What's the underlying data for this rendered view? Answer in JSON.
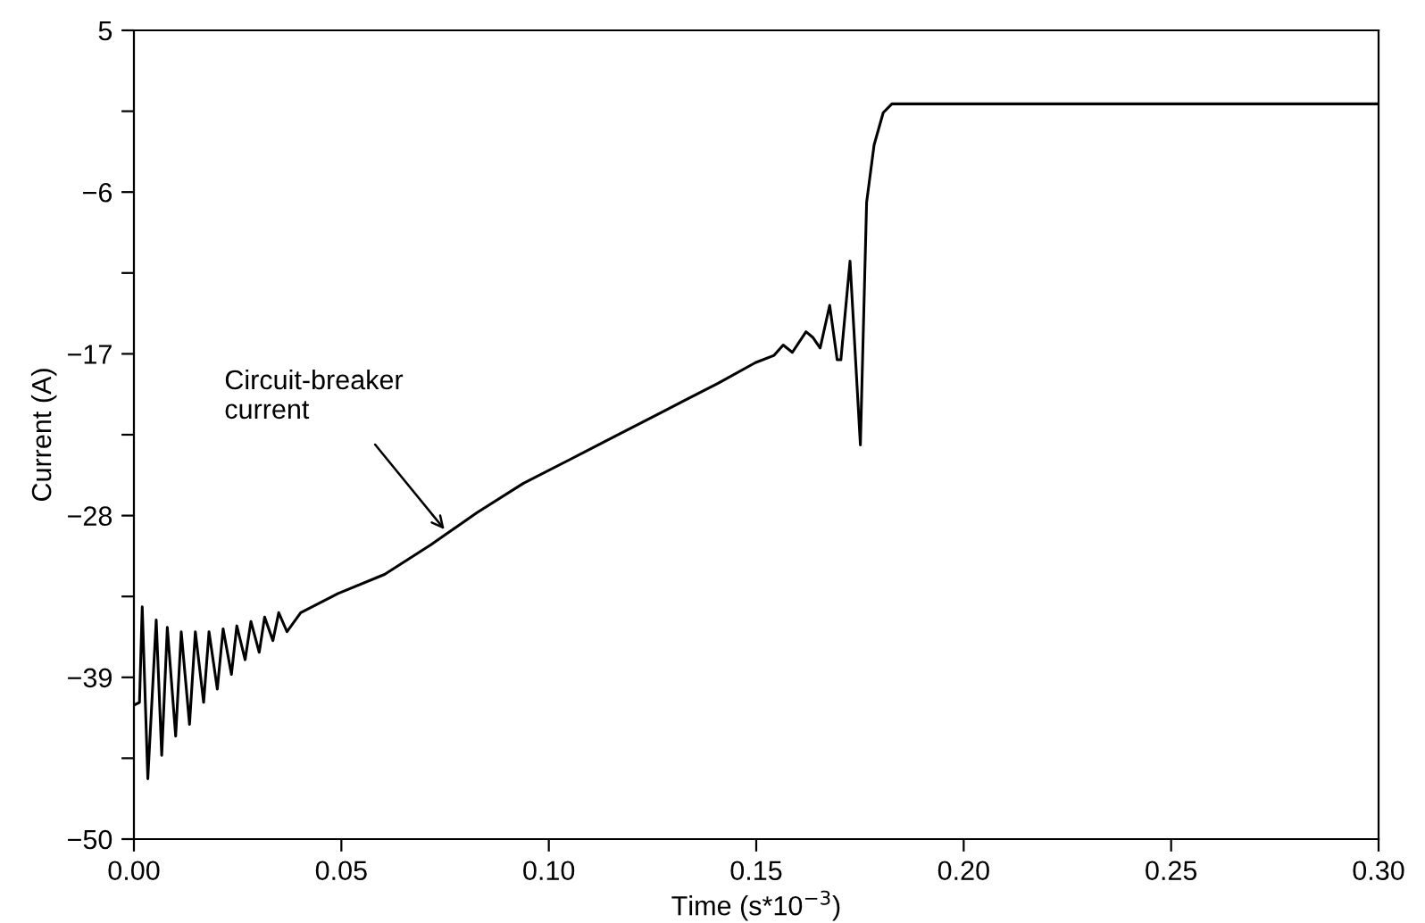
{
  "chart_data": {
    "type": "line",
    "xlabel": "Time (s*10$^{−3}$)",
    "ylabel": "Current (A)",
    "x": [
      0,
      0.00134,
      0.002,
      0.00335,
      0.00537,
      0.0067,
      0.00805,
      0.01006,
      0.0114,
      0.0134,
      0.0148,
      0.0168,
      0.0181,
      0.0201,
      0.0215,
      0.0235,
      0.0248,
      0.0268,
      0.0282,
      0.0302,
      0.0315,
      0.0335,
      0.0349,
      0.0369,
      0.0402,
      0.0492,
      0.0604,
      0.0715,
      0.0827,
      0.0939,
      0.105,
      0.116,
      0.127,
      0.1408,
      0.1498,
      0.1543,
      0.1565,
      0.1587,
      0.162,
      0.1637,
      0.1654,
      0.1677,
      0.1695,
      0.1704,
      0.1726,
      0.1751,
      0.1766,
      0.1784,
      0.1806,
      0.1827,
      0.2996
    ],
    "series": [
      {
        "color": "#000000",
        "values": [
          -40.9,
          -40.7,
          -34.2,
          -45.9,
          -35.1,
          -44.3,
          -35.6,
          -43.0,
          -35.9,
          -42.2,
          -35.9,
          -40.7,
          -35.9,
          -39.8,
          -35.7,
          -38.8,
          -35.5,
          -37.8,
          -35.2,
          -37.3,
          -34.9,
          -36.5,
          -34.6,
          -35.9,
          -34.6,
          -33.3,
          -32.0,
          -30.0,
          -27.8,
          -25.8,
          -24.2,
          -22.6,
          -21.0,
          -19.0,
          -17.6,
          -17.1,
          -16.4,
          -16.9,
          -15.5,
          -15.9,
          -16.6,
          -13.7,
          -17.4,
          -17.4,
          -10.7,
          -23.2,
          -6.7,
          -2.8,
          -0.6,
          0.0,
          0.0
        ]
      }
    ],
    "xlim": [
      0,
      0.3
    ],
    "xticks": [
      {
        "value": 0,
        "label": "0.00"
      },
      0.05,
      {
        "value": 0.1,
        "label": "0.10"
      },
      0.15,
      {
        "value": 0.2,
        "label": "0.20"
      },
      0.25,
      {
        "value": 0.3,
        "label": "0.30"
      }
    ],
    "ylim": [
      -50,
      5
    ],
    "yticks": [
      {
        "value": -50,
        "label": "−50"
      },
      {
        "value": -44.5,
        "label": null
      },
      {
        "value": -39,
        "label": "−39"
      },
      {
        "value": -33.5,
        "label": null
      },
      {
        "value": -28,
        "label": "−28"
      },
      {
        "value": -22.5,
        "label": null
      },
      {
        "value": -17,
        "label": "−17"
      },
      {
        "value": -11.5,
        "label": null
      },
      {
        "value": -6,
        "label": "−6"
      },
      {
        "value": -0.5,
        "label": null
      },
      5
    ],
    "annotations": [
      {
        "text": "Circuit-breaker\ncurrent",
        "x": 0.0756,
        "y": -29.2
      }
    ],
    "grid": false,
    "legend": false,
    "marker": "none",
    "line_style": "solid"
  }
}
